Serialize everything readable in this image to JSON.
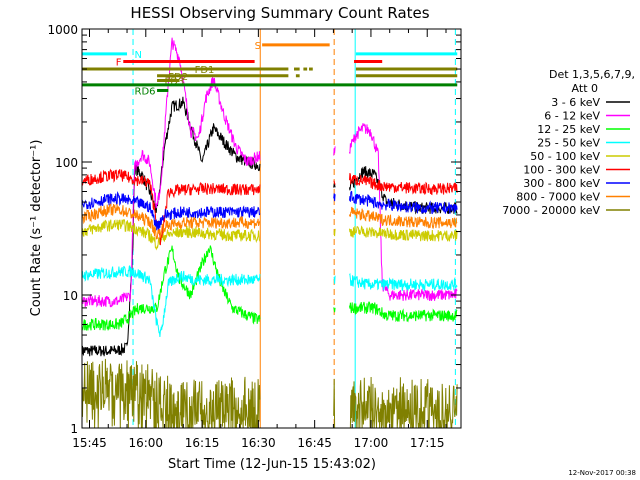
{
  "chart_data": {
    "type": "line",
    "title": "HESSI Observing Summary Count Rates",
    "xlabel": "Start Time (12-Jun-15 15:43:02)",
    "ylabel": "Count Rate (s⁻¹ detector⁻¹)",
    "x_units": "minutes after 15:43:02",
    "xlim": [
      0,
      101
    ],
    "ylim": [
      1,
      1000
    ],
    "y_scale": "log",
    "x_tick_labels": [
      "15:45",
      "16:00",
      "16:15",
      "16:30",
      "16:45",
      "17:00",
      "17:15"
    ],
    "x_tick_minutes": [
      2,
      17,
      32,
      47,
      62,
      77,
      92
    ],
    "y_tick_labels": [
      "1",
      "10",
      "100",
      "1000"
    ],
    "y_tick_values": [
      1,
      10,
      100,
      1000
    ],
    "legend_header": [
      "Det 1,3,5,6,7,9,",
      "Att 0"
    ],
    "legend_position": "right",
    "footer": "12-Nov-2017 00:38",
    "gaps_minutes": [
      [
        47.5,
        67
      ],
      [
        67.5,
        71.2
      ]
    ],
    "data_gap_lines": [
      {
        "x": 47.5,
        "color": "#ff8000",
        "style": "solid"
      },
      {
        "x": 67.2,
        "color": "#ff8000",
        "style": "dashed"
      },
      {
        "x": 13.6,
        "color": "#00ffff",
        "style": "dashed"
      },
      {
        "x": 72.8,
        "color": "#00ffff",
        "style": "solid"
      },
      {
        "x": 99.5,
        "color": "#00ffff",
        "style": "dashed"
      }
    ],
    "series": [
      {
        "name": "3 - 6 keV",
        "color": "#000000",
        "points": [
          [
            0,
            3.8
          ],
          [
            9,
            3.8
          ],
          [
            12,
            4
          ],
          [
            13.5,
            20
          ],
          [
            14,
            90
          ],
          [
            16,
            80
          ],
          [
            18,
            60
          ],
          [
            20,
            42
          ],
          [
            22,
            130
          ],
          [
            24,
            260
          ],
          [
            27,
            280
          ],
          [
            30,
            150
          ],
          [
            32,
            100
          ],
          [
            35,
            180
          ],
          [
            38,
            140
          ],
          [
            41,
            110
          ],
          [
            44,
            100
          ],
          [
            47,
            95
          ],
          [
            71,
            60
          ],
          [
            73,
            75
          ],
          [
            75,
            85
          ],
          [
            78,
            80
          ],
          [
            81,
            50
          ],
          [
            85,
            48
          ],
          [
            90,
            45
          ],
          [
            100,
            45
          ]
        ]
      },
      {
        "name": "6 - 12 keV",
        "color": "#ff00ff",
        "points": [
          [
            0,
            9
          ],
          [
            10,
            9
          ],
          [
            13,
            10
          ],
          [
            14,
            90
          ],
          [
            16,
            115
          ],
          [
            18,
            100
          ],
          [
            20,
            45
          ],
          [
            21,
            70
          ],
          [
            23,
            400
          ],
          [
            24,
            800
          ],
          [
            26,
            600
          ],
          [
            29,
            170
          ],
          [
            31,
            150
          ],
          [
            33,
            300
          ],
          [
            35,
            420
          ],
          [
            38,
            220
          ],
          [
            41,
            130
          ],
          [
            44,
            100
          ],
          [
            47,
            110
          ],
          [
            71,
            120
          ],
          [
            73,
            160
          ],
          [
            75,
            180
          ],
          [
            77,
            170
          ],
          [
            79,
            110
          ],
          [
            80,
            12
          ],
          [
            82,
            10
          ],
          [
            100,
            10
          ]
        ]
      },
      {
        "name": "12 - 25 keV",
        "color": "#00ff00",
        "points": [
          [
            0,
            6
          ],
          [
            10,
            6
          ],
          [
            13,
            7
          ],
          [
            15,
            8
          ],
          [
            18,
            8
          ],
          [
            20,
            8
          ],
          [
            22,
            15
          ],
          [
            24,
            22
          ],
          [
            26,
            13
          ],
          [
            29,
            10
          ],
          [
            32,
            17
          ],
          [
            34,
            23
          ],
          [
            37,
            12
          ],
          [
            40,
            8
          ],
          [
            44,
            7
          ],
          [
            47,
            6.5
          ],
          [
            71,
            8
          ],
          [
            75,
            8
          ],
          [
            78,
            8
          ],
          [
            81,
            7
          ],
          [
            90,
            7
          ],
          [
            100,
            7
          ]
        ]
      },
      {
        "name": "25 - 50 keV",
        "color": "#00ffff",
        "points": [
          [
            0,
            14
          ],
          [
            10,
            15
          ],
          [
            14,
            15
          ],
          [
            18,
            13
          ],
          [
            20,
            6
          ],
          [
            21,
            5
          ],
          [
            23,
            12
          ],
          [
            26,
            14
          ],
          [
            30,
            13
          ],
          [
            35,
            13
          ],
          [
            40,
            13
          ],
          [
            47,
            13
          ],
          [
            71,
            13
          ],
          [
            76,
            12
          ],
          [
            80,
            12
          ],
          [
            90,
            12
          ],
          [
            100,
            12
          ]
        ]
      },
      {
        "name": "50 - 100 keV",
        "color": "#cccc00",
        "points": [
          [
            0,
            30
          ],
          [
            6,
            33
          ],
          [
            10,
            34
          ],
          [
            14,
            32
          ],
          [
            18,
            28
          ],
          [
            20,
            24
          ],
          [
            22,
            28
          ],
          [
            27,
            30
          ],
          [
            33,
            29
          ],
          [
            40,
            28
          ],
          [
            47,
            28
          ],
          [
            71,
            30
          ],
          [
            75,
            30
          ],
          [
            80,
            29
          ],
          [
            90,
            28
          ],
          [
            100,
            28
          ]
        ]
      },
      {
        "name": "100 - 300 keV",
        "color": "#ff0000",
        "points": [
          [
            0,
            72
          ],
          [
            6,
            78
          ],
          [
            10,
            80
          ],
          [
            14,
            74
          ],
          [
            18,
            70
          ],
          [
            20,
            35
          ],
          [
            21,
            25
          ],
          [
            23,
            60
          ],
          [
            28,
            62
          ],
          [
            34,
            63
          ],
          [
            40,
            62
          ],
          [
            47,
            62
          ],
          [
            71,
            75
          ],
          [
            75,
            72
          ],
          [
            80,
            66
          ],
          [
            90,
            63
          ],
          [
            100,
            63
          ]
        ]
      },
      {
        "name": "300 - 800 keV",
        "color": "#0000ff",
        "points": [
          [
            0,
            48
          ],
          [
            6,
            52
          ],
          [
            10,
            53
          ],
          [
            14,
            50
          ],
          [
            18,
            46
          ],
          [
            20,
            33
          ],
          [
            22,
            40
          ],
          [
            27,
            42
          ],
          [
            33,
            42
          ],
          [
            40,
            42
          ],
          [
            47,
            42
          ],
          [
            71,
            55
          ],
          [
            75,
            52
          ],
          [
            80,
            48
          ],
          [
            90,
            45
          ],
          [
            100,
            45
          ]
        ]
      },
      {
        "name": "800 - 7000 keV",
        "color": "#ff8000",
        "points": [
          [
            0,
            38
          ],
          [
            6,
            43
          ],
          [
            10,
            44
          ],
          [
            14,
            40
          ],
          [
            18,
            36
          ],
          [
            20,
            28
          ],
          [
            22,
            33
          ],
          [
            27,
            35
          ],
          [
            33,
            35
          ],
          [
            40,
            35
          ],
          [
            47,
            35
          ],
          [
            71,
            42
          ],
          [
            75,
            40
          ],
          [
            80,
            37
          ],
          [
            90,
            35
          ],
          [
            100,
            35
          ]
        ]
      },
      {
        "name": "7000 - 20000 keV",
        "color": "#808000",
        "points": [
          [
            0,
            2.2
          ],
          [
            8,
            2.2
          ],
          [
            14,
            2.2
          ],
          [
            18,
            2.0
          ],
          [
            20,
            1.9
          ],
          [
            24,
            1.6
          ],
          [
            30,
            1.6
          ],
          [
            40,
            1.6
          ],
          [
            47,
            1.6
          ],
          [
            71,
            1.6
          ],
          [
            80,
            1.6
          ],
          [
            90,
            1.6
          ],
          [
            100,
            1.6
          ]
        ]
      }
    ],
    "flags": [
      {
        "label": "N",
        "color": "#00ffff",
        "value": 650,
        "segments": [
          [
            0,
            12
          ],
          [
            73,
            100
          ]
        ],
        "label_at": 14
      },
      {
        "label": "S",
        "color": "#ff8000",
        "value": 760,
        "segments": [
          [
            48,
            66
          ]
        ],
        "label_at": 46
      },
      {
        "label": "F",
        "color": "#ff0000",
        "value": 570,
        "segments": [
          [
            11,
            46
          ],
          [
            72.5,
            80
          ]
        ],
        "label_at": 9
      },
      {
        "label": "FD1",
        "color": "#808000",
        "value": 500,
        "segments": [
          [
            0,
            55
          ],
          [
            56.5,
            58
          ],
          [
            59,
            60
          ],
          [
            60.5,
            61.5
          ],
          [
            73,
            100
          ]
        ],
        "label_at": 30
      },
      {
        "label": "FD2",
        "color": "#808000",
        "value": 445,
        "segments": [
          [
            20,
            55
          ],
          [
            57,
            58
          ],
          [
            73,
            100
          ]
        ],
        "label_at": 23
      },
      {
        "label": "FD3",
        "color": "#808000",
        "value": 410,
        "segments": [
          [
            20,
            26
          ]
        ],
        "label_at": 22
      },
      {
        "label": "",
        "color": "#008000",
        "value": 380,
        "segments": [
          [
            0,
            100
          ]
        ],
        "label_at": 0
      },
      {
        "label": "RD6",
        "color": "#008000",
        "value": 345,
        "segments": [
          [
            20,
            23
          ]
        ],
        "label_at": 14
      }
    ]
  }
}
